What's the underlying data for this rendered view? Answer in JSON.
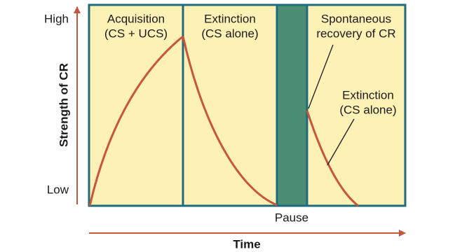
{
  "y_axis": {
    "label": "Strength of CR",
    "high": "High",
    "low": "Low"
  },
  "x_axis": {
    "label": "Time"
  },
  "phases": [
    {
      "line1": "Acquisition",
      "line2": "(CS + UCS)"
    },
    {
      "line1": "Extinction",
      "line2": "(CS alone)"
    },
    {
      "line1": "Spontaneous",
      "line2": "recovery of CR"
    }
  ],
  "pause": "Pause",
  "annotation": {
    "line1": "Extinction",
    "line2": "(CS alone)"
  }
}
